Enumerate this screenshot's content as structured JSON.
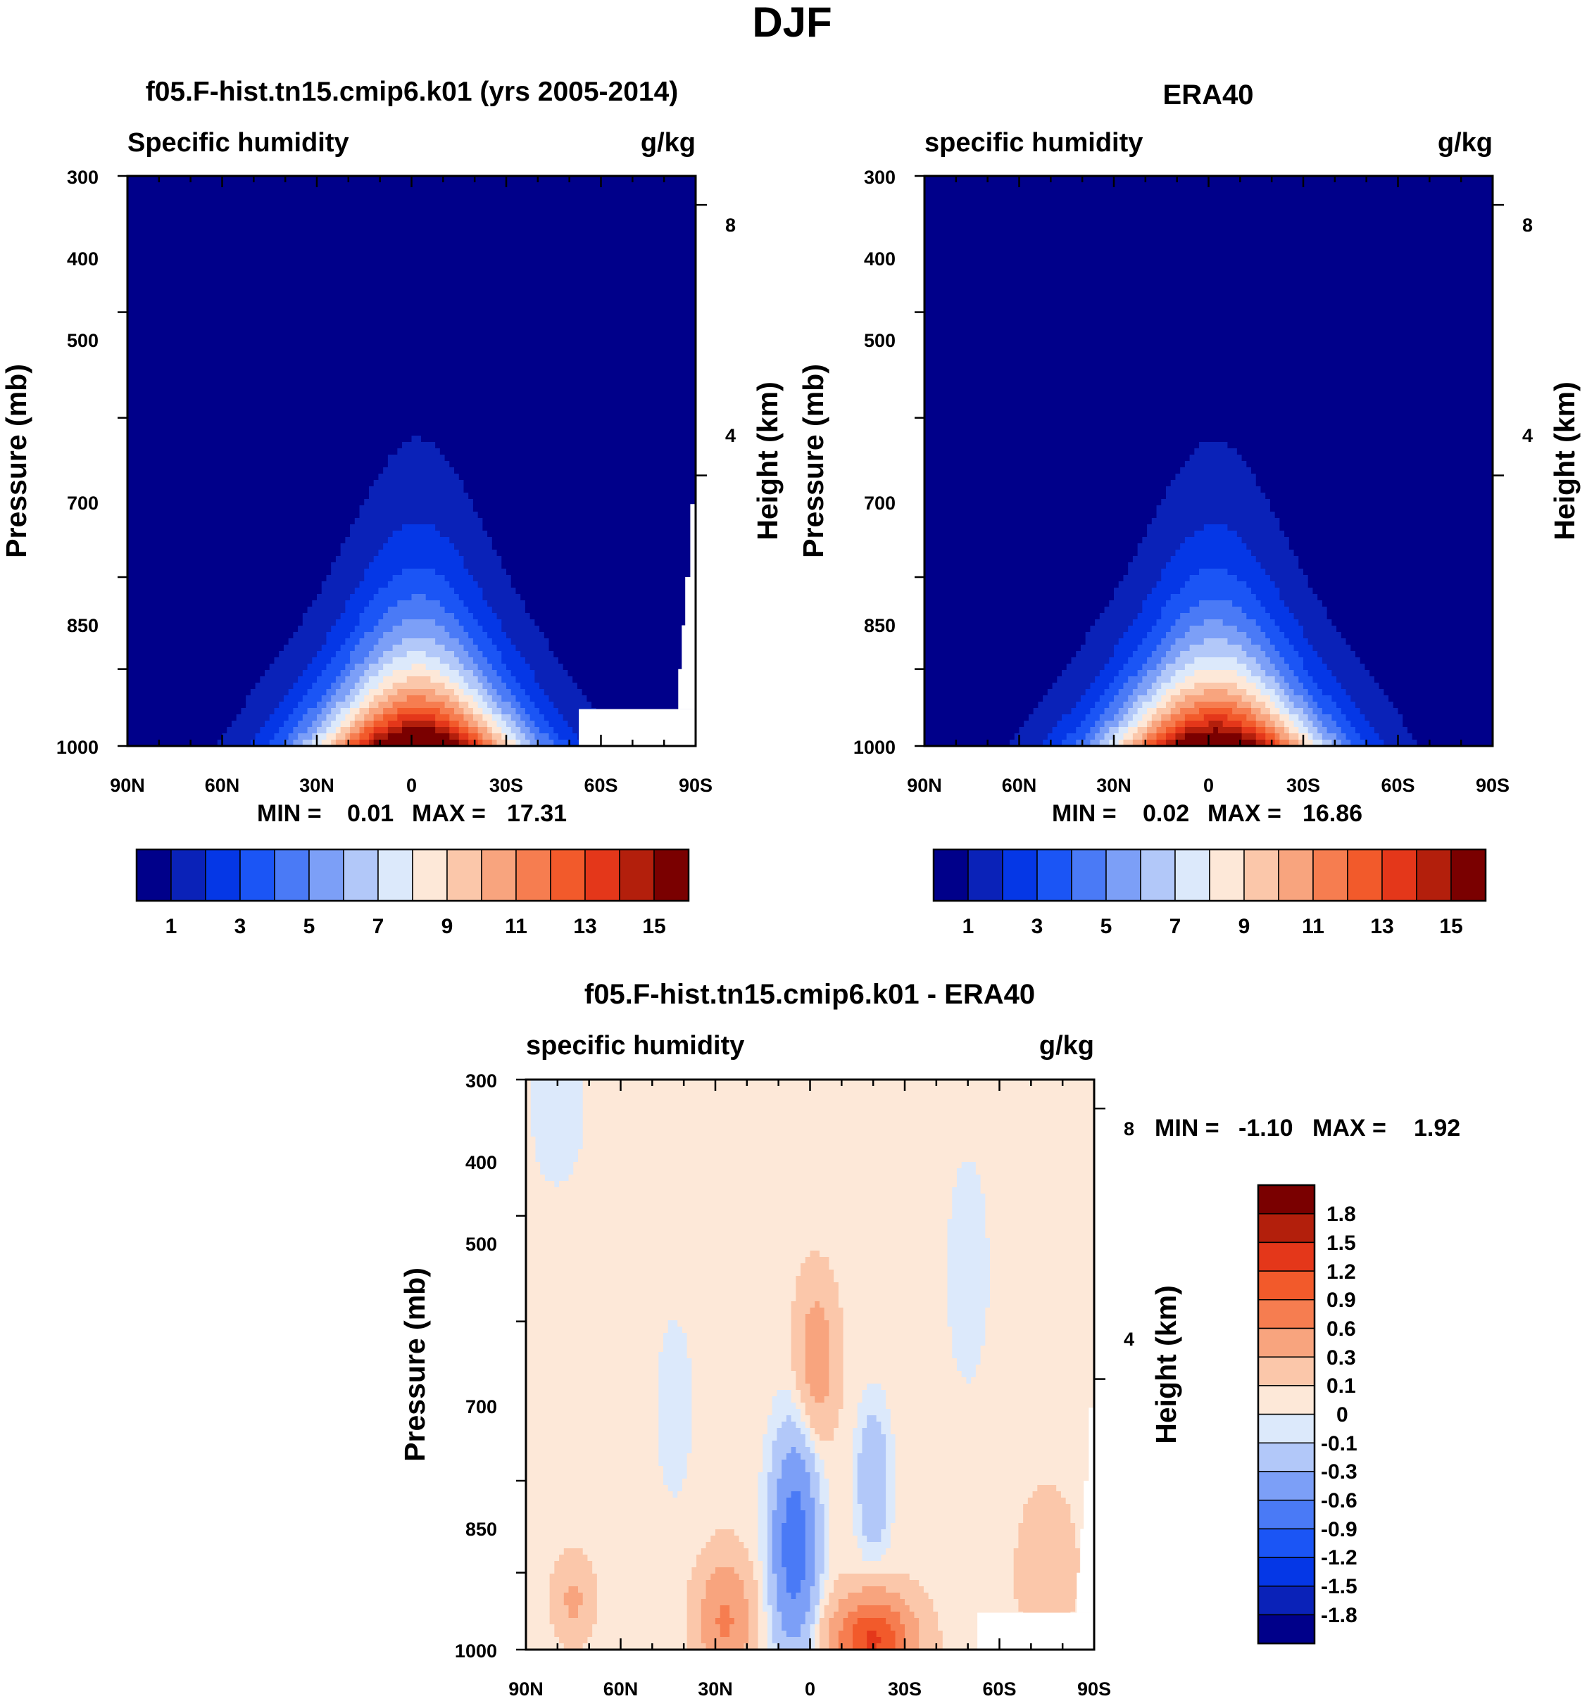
{
  "figure": {
    "title": "DJF"
  },
  "chart_data": [
    {
      "type": "heatmap",
      "title": "f05.F-hist.tn15.cmip6.k01 (yrs 2005-2014)",
      "left_label": "Specific humidity",
      "right_label": "g/kg",
      "ylabel": "Pressure (mb)",
      "ylabel_right": "Height (km)",
      "x_ticks": [
        "90N",
        "60N",
        "30N",
        "0",
        "30S",
        "60S",
        "90S"
      ],
      "y_ticks": [
        "300",
        "400",
        "500",
        "700",
        "850",
        "1000"
      ],
      "y_right_ticks": [
        "8",
        "4"
      ],
      "stats": {
        "min_label": "MIN =",
        "min": "0.01",
        "max_label": "MAX =",
        "max": "17.31"
      },
      "levels": [
        1,
        2,
        3,
        4,
        5,
        6,
        7,
        8,
        9,
        10,
        11,
        12,
        13,
        14,
        15
      ],
      "colorbar_labels": [
        "1",
        "3",
        "5",
        "7",
        "9",
        "11",
        "13",
        "15"
      ],
      "field_peak": 17.3,
      "field_width_deg": 34
    },
    {
      "type": "heatmap",
      "title": "ERA40",
      "left_label": "specific humidity",
      "right_label": "g/kg",
      "ylabel": "Pressure (mb)",
      "ylabel_right": "Height (km)",
      "x_ticks": [
        "90N",
        "60N",
        "30N",
        "0",
        "30S",
        "60S",
        "90S"
      ],
      "y_ticks": [
        "300",
        "400",
        "500",
        "700",
        "850",
        "1000"
      ],
      "y_right_ticks": [
        "8",
        "4"
      ],
      "stats": {
        "min_label": "MIN =",
        "min": "0.02",
        "max_label": "MAX =",
        "max": "16.86"
      },
      "levels": [
        1,
        2,
        3,
        4,
        5,
        6,
        7,
        8,
        9,
        10,
        11,
        12,
        13,
        14,
        15
      ],
      "colorbar_labels": [
        "1",
        "3",
        "5",
        "7",
        "9",
        "11",
        "13",
        "15"
      ],
      "field_peak": 16.9,
      "field_width_deg": 35
    },
    {
      "type": "heatmap",
      "title": "f05.F-hist.tn15.cmip6.k01 - ERA40",
      "left_label": "specific humidity",
      "right_label": "g/kg",
      "ylabel": "Pressure (mb)",
      "ylabel_right": "Height (km)",
      "x_ticks": [
        "90N",
        "60N",
        "30N",
        "0",
        "30S",
        "60S",
        "90S"
      ],
      "y_ticks": [
        "300",
        "400",
        "500",
        "700",
        "850",
        "1000"
      ],
      "y_right_ticks": [
        "8",
        "4"
      ],
      "stats": {
        "min_label": "MIN =",
        "min": "-1.10",
        "max_label": "MAX =",
        "max": "1.92"
      },
      "levels": [
        -1.8,
        -1.5,
        -1.2,
        -0.9,
        -0.6,
        -0.3,
        -0.1,
        0,
        0.1,
        0.3,
        0.6,
        0.9,
        1.2,
        1.5,
        1.8
      ],
      "colorbar_labels": [
        "1.8",
        "1.5",
        "1.2",
        "0.9",
        "0.6",
        "0.3",
        "0.1",
        "0",
        "-0.1",
        "-0.3",
        "-0.6",
        "-0.9",
        "-1.2",
        "-1.5",
        "-1.8"
      ]
    }
  ],
  "palette": [
    "#00008a",
    "#0a22b8",
    "#0537e6",
    "#1b55f5",
    "#4a7af6",
    "#7c9ff7",
    "#b2c8f9",
    "#dce9fb",
    "#fde8d8",
    "#fbc7aa",
    "#f8a47e",
    "#f67d50",
    "#f25a2b",
    "#e4371a",
    "#b31f0c",
    "#7a0000"
  ],
  "missing_color": "#ffffff"
}
